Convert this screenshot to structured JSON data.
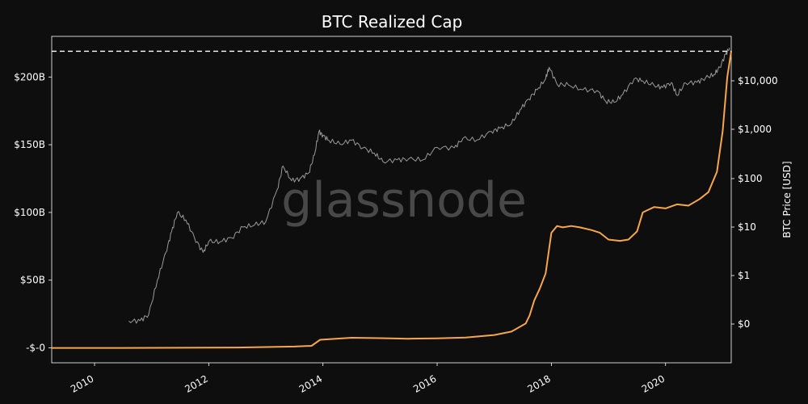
{
  "chart_data": {
    "type": "line",
    "title": "BTC Realized Cap",
    "watermark": "glassnode",
    "ylabel_left": "",
    "ylabel_right": "BTC Price [USD]",
    "x_ticks": [
      "2010",
      "2012",
      "2014",
      "2016",
      "2018",
      "2020"
    ],
    "y_left_ticks": [
      {
        "value": 0,
        "label": "-$-0"
      },
      {
        "value": 50,
        "label": "$50B"
      },
      {
        "value": 100,
        "label": "$100B"
      },
      {
        "value": 150,
        "label": "$150B"
      },
      {
        "value": 200,
        "label": "$200B"
      }
    ],
    "y_left_unit": "billions USD",
    "y_left_range": [
      -11,
      230
    ],
    "y_right_ticks": [
      {
        "value": 0,
        "label": "$0"
      },
      {
        "value": 1,
        "label": "$1"
      },
      {
        "value": 10,
        "label": "$10"
      },
      {
        "value": 100,
        "label": "$100"
      },
      {
        "value": 1000,
        "label": "$1,000"
      },
      {
        "value": 10000,
        "label": "$10,000"
      }
    ],
    "y_right_scale": "log",
    "x_range": [
      2009.25,
      2021.15
    ],
    "ath_reference_line": {
      "value": 219,
      "style": "dashed",
      "color": "#ffffff"
    },
    "series": [
      {
        "axis": "left",
        "color": "#f7a64a",
        "points": [
          [
            2009.25,
            0
          ],
          [
            2010.5,
            0
          ],
          [
            2011.5,
            0.1
          ],
          [
            2012.5,
            0.3
          ],
          [
            2013.5,
            1.0
          ],
          [
            2013.8,
            1.5
          ],
          [
            2013.95,
            6
          ],
          [
            2014.5,
            7.5
          ],
          [
            2015.0,
            7.2
          ],
          [
            2015.5,
            6.8
          ],
          [
            2016.0,
            7.0
          ],
          [
            2016.5,
            7.6
          ],
          [
            2017.0,
            9.5
          ],
          [
            2017.3,
            12
          ],
          [
            2017.55,
            18
          ],
          [
            2017.62,
            24
          ],
          [
            2017.7,
            35
          ],
          [
            2017.8,
            44
          ],
          [
            2017.9,
            55
          ],
          [
            2018.0,
            85
          ],
          [
            2018.1,
            90
          ],
          [
            2018.2,
            89
          ],
          [
            2018.35,
            90
          ],
          [
            2018.5,
            89
          ],
          [
            2018.7,
            87
          ],
          [
            2018.85,
            85
          ],
          [
            2019.0,
            80
          ],
          [
            2019.2,
            79
          ],
          [
            2019.35,
            80
          ],
          [
            2019.5,
            86
          ],
          [
            2019.6,
            100
          ],
          [
            2019.8,
            104
          ],
          [
            2020.0,
            103
          ],
          [
            2020.2,
            106
          ],
          [
            2020.4,
            105
          ],
          [
            2020.6,
            110
          ],
          [
            2020.75,
            115
          ],
          [
            2020.9,
            130
          ],
          [
            2021.0,
            160
          ],
          [
            2021.08,
            200
          ],
          [
            2021.15,
            219
          ]
        ]
      },
      {
        "axis": "right",
        "color": "#9a9a9a",
        "points": [
          [
            2010.6,
            0.06
          ],
          [
            2010.8,
            0.07
          ],
          [
            2010.95,
            0.2
          ],
          [
            2011.1,
            0.9
          ],
          [
            2011.25,
            3
          ],
          [
            2011.35,
            8
          ],
          [
            2011.45,
            20
          ],
          [
            2011.6,
            14
          ],
          [
            2011.75,
            6
          ],
          [
            2011.9,
            3
          ],
          [
            2012.0,
            5
          ],
          [
            2012.2,
            5
          ],
          [
            2012.4,
            6
          ],
          [
            2012.6,
            10
          ],
          [
            2012.8,
            11
          ],
          [
            2013.0,
            13
          ],
          [
            2013.2,
            60
          ],
          [
            2013.3,
            180
          ],
          [
            2013.45,
            90
          ],
          [
            2013.6,
            100
          ],
          [
            2013.75,
            130
          ],
          [
            2013.85,
            300
          ],
          [
            2013.93,
            900
          ],
          [
            2014.0,
            750
          ],
          [
            2014.1,
            600
          ],
          [
            2014.3,
            500
          ],
          [
            2014.5,
            600
          ],
          [
            2014.7,
            420
          ],
          [
            2014.9,
            330
          ],
          [
            2015.05,
            220
          ],
          [
            2015.3,
            240
          ],
          [
            2015.5,
            250
          ],
          [
            2015.75,
            240
          ],
          [
            2016.0,
            430
          ],
          [
            2016.3,
            420
          ],
          [
            2016.45,
            650
          ],
          [
            2016.7,
            610
          ],
          [
            2016.95,
            900
          ],
          [
            2017.1,
            1050
          ],
          [
            2017.3,
            1300
          ],
          [
            2017.45,
            2500
          ],
          [
            2017.6,
            4200
          ],
          [
            2017.75,
            6500
          ],
          [
            2017.9,
            11000
          ],
          [
            2017.96,
            19000
          ],
          [
            2018.1,
            8500
          ],
          [
            2018.3,
            8200
          ],
          [
            2018.55,
            6500
          ],
          [
            2018.8,
            6300
          ],
          [
            2018.95,
            3800
          ],
          [
            2019.1,
            3600
          ],
          [
            2019.25,
            5200
          ],
          [
            2019.45,
            11000
          ],
          [
            2019.6,
            10000
          ],
          [
            2019.8,
            8000
          ],
          [
            2019.95,
            7300
          ],
          [
            2020.1,
            9200
          ],
          [
            2020.2,
            5000
          ],
          [
            2020.35,
            9000
          ],
          [
            2020.55,
            9300
          ],
          [
            2020.7,
            11500
          ],
          [
            2020.85,
            13500
          ],
          [
            2020.95,
            19000
          ],
          [
            2021.05,
            35000
          ],
          [
            2021.12,
            48000
          ]
        ]
      }
    ]
  }
}
